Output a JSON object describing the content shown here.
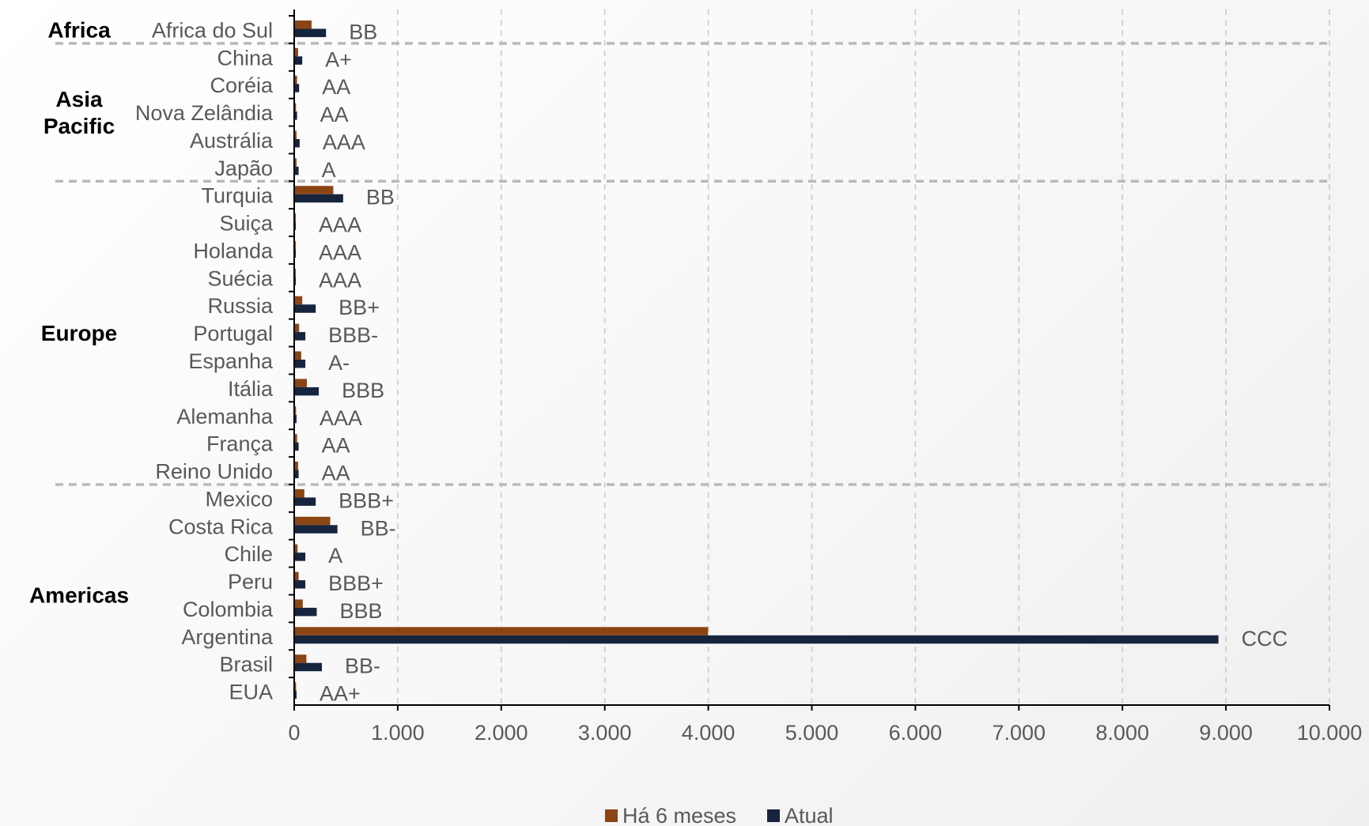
{
  "chart_data": {
    "type": "bar",
    "orientation": "horizontal",
    "title": "",
    "xlabel": "",
    "ylabel": "",
    "xlim": [
      0,
      10000
    ],
    "x_ticks": [
      "0",
      "1.000",
      "2.000",
      "3.000",
      "4.000",
      "5.000",
      "6.000",
      "7.000",
      "8.000",
      "9.000",
      "10.000"
    ],
    "grid": "vertical-dashed",
    "legend_position": "bottom",
    "categories": [
      "Africa do Sul",
      "China",
      "Coréia",
      "Nova Zelândia",
      "Austrália",
      "Japão",
      "Turquia",
      "Suiça",
      "Holanda",
      "Suécia",
      "Russia",
      "Portugal",
      "Espanha",
      "Itália",
      "Alemanha",
      "França",
      "Reino Unido",
      "Mexico",
      "Costa Rica",
      "Chile",
      "Peru",
      "Colombia",
      "Argentina",
      "Brasil",
      "EUA"
    ],
    "ratings": [
      "BB",
      "A+",
      "AA",
      "AA",
      "AAA",
      "A",
      "BB",
      "AAA",
      "AAA",
      "AAA",
      "BB+",
      "BBB-",
      "A-",
      "BBB",
      "AAA",
      "AA",
      "AA",
      "BBB+",
      "BB-",
      "A",
      "BBB+",
      "BBB",
      "CCC",
      "BB-",
      "AA+"
    ],
    "series": [
      {
        "name": "Há 6 meses",
        "color": "#8B4513",
        "values": [
          160,
          30,
          20,
          10,
          15,
          15,
          370,
          5,
          5,
          5,
          70,
          40,
          60,
          115,
          10,
          20,
          30,
          90,
          340,
          25,
          35,
          75,
          3990,
          110,
          10
        ]
      },
      {
        "name": "Atual",
        "color": "#16243E",
        "values": [
          300,
          70,
          40,
          20,
          45,
          35,
          465,
          8,
          8,
          8,
          200,
          100,
          100,
          230,
          15,
          35,
          35,
          200,
          410,
          100,
          100,
          210,
          8920,
          260,
          15
        ]
      }
    ],
    "groups": [
      {
        "name": "Africa",
        "categories": [
          "Africa do Sul"
        ]
      },
      {
        "name": "Asia Pacific",
        "categories": [
          "China",
          "Coréia",
          "Nova Zelândia",
          "Austrália",
          "Japão"
        ]
      },
      {
        "name": "Europe",
        "categories": [
          "Turquia",
          "Suiça",
          "Holanda",
          "Suécia",
          "Russia",
          "Portugal",
          "Espanha",
          "Itália",
          "Alemanha",
          "França",
          "Reino Unido"
        ]
      },
      {
        "name": "Americas",
        "categories": [
          "Mexico",
          "Costa Rica",
          "Chile",
          "Peru",
          "Colombia",
          "Argentina",
          "Brasil",
          "EUA"
        ]
      }
    ]
  }
}
